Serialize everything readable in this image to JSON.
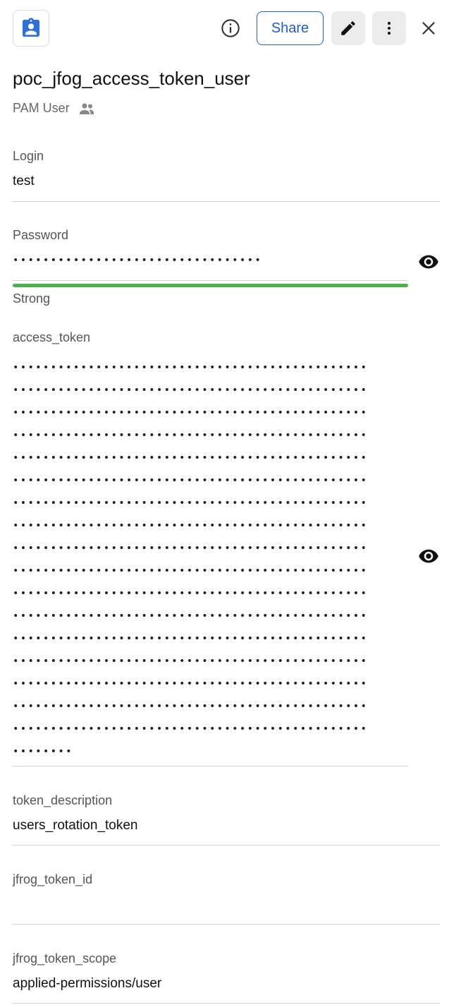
{
  "header": {
    "share_label": "Share",
    "record_icon": "person-badge-icon",
    "info_icon": "info-circle-icon",
    "edit_icon": "pencil-icon",
    "more_icon": "vertical-dots-icon",
    "close_icon": "close-x-icon"
  },
  "record": {
    "title": "poc_jfog_access_token_user",
    "type": "PAM User",
    "shared_icon": "shared-users-icon"
  },
  "fields": {
    "login": {
      "label": "Login",
      "value": "test"
    },
    "password": {
      "label": "Password",
      "masked": "•••••••••••••••••••••••••••••••••",
      "strength_label": "Strong",
      "strength_fraction": 1.0,
      "strength_color": "#4caf50"
    },
    "access_token": {
      "label": "access_token",
      "masked_lines": [
        "•••••••••••••••••••••••••••••••••••••••••••••••",
        "•••••••••••••••••••••••••••••••••••••••••••••••",
        "•••••••••••••••••••••••••••••••••••••••••••••••",
        "•••••••••••••••••••••••••••••••••••••••••••••••",
        "•••••••••••••••••••••••••••••••••••••••••••••••",
        "•••••••••••••••••••••••••••••••••••••••••••••••",
        "•••••••••••••••••••••••••••••••••••••••••••••••",
        "•••••••••••••••••••••••••••••••••••••••••••••••",
        "•••••••••••••••••••••••••••••••••••••••••••••••",
        "•••••••••••••••••••••••••••••••••••••••••••••••",
        "•••••••••••••••••••••••••••••••••••••••••••••••",
        "•••••••••••••••••••••••••••••••••••••••••••••••",
        "•••••••••••••••••••••••••••••••••••••••••••••••",
        "•••••••••••••••••••••••••••••••••••••••••••••••",
        "•••••••••••••••••••••••••••••••••••••••••••••••",
        "•••••••••••••••••••••••••••••••••••••••••••••••",
        "•••••••••••••••••••••••••••••••••••••••••••••••",
        "••••••••"
      ]
    },
    "token_description": {
      "label": "token_description",
      "value": "users_rotation_token"
    },
    "jfrog_token_id": {
      "label": "jfrog_token_id",
      "value": ""
    },
    "jfrog_token_scope": {
      "label": "jfrog_token_scope",
      "value": "applied-permissions/user"
    }
  },
  "colors": {
    "accent": "#1f5fbf",
    "record_icon": "#2f6fd6",
    "strength": "#4caf50"
  }
}
